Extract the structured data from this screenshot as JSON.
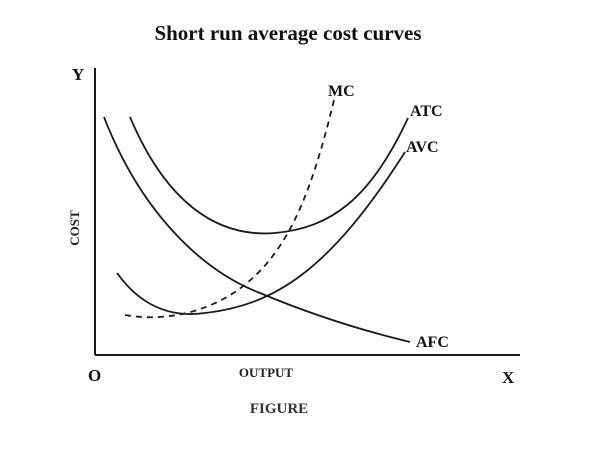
{
  "title": "Short run average cost curves",
  "axes": {
    "y_letter": "Y",
    "x_letter": "X",
    "origin": "O",
    "y_label": "COST",
    "x_label": "OUTPUT"
  },
  "curves": {
    "mc": "MC",
    "atc": "ATC",
    "avc": "AVC",
    "afc": "AFC"
  },
  "caption": "FIGURE"
}
